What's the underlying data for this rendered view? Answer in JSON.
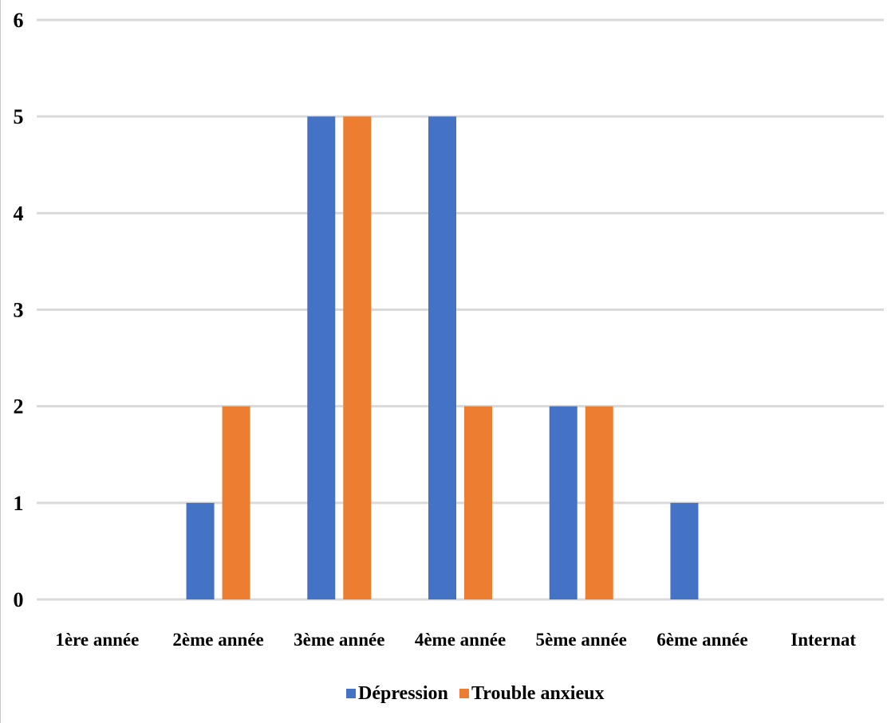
{
  "chart_data": {
    "type": "bar",
    "title": "",
    "xlabel": "",
    "ylabel": "",
    "categories": [
      "1ère année",
      "2ème année",
      "3ème année",
      "4ème année",
      "5ème année",
      "6ème année",
      "Internat"
    ],
    "series": [
      {
        "name": "Dépression",
        "color": "#4472C4",
        "values": [
          0,
          1,
          5,
          5,
          2,
          1,
          0
        ]
      },
      {
        "name": "Trouble anxieux",
        "color": "#ED7D31",
        "values": [
          0,
          2,
          5,
          2,
          2,
          0,
          0
        ]
      }
    ],
    "ylim": [
      0,
      6
    ],
    "yticks": [
      0,
      1,
      2,
      3,
      4,
      5,
      6
    ],
    "grid": true,
    "legend_position": "bottom"
  }
}
